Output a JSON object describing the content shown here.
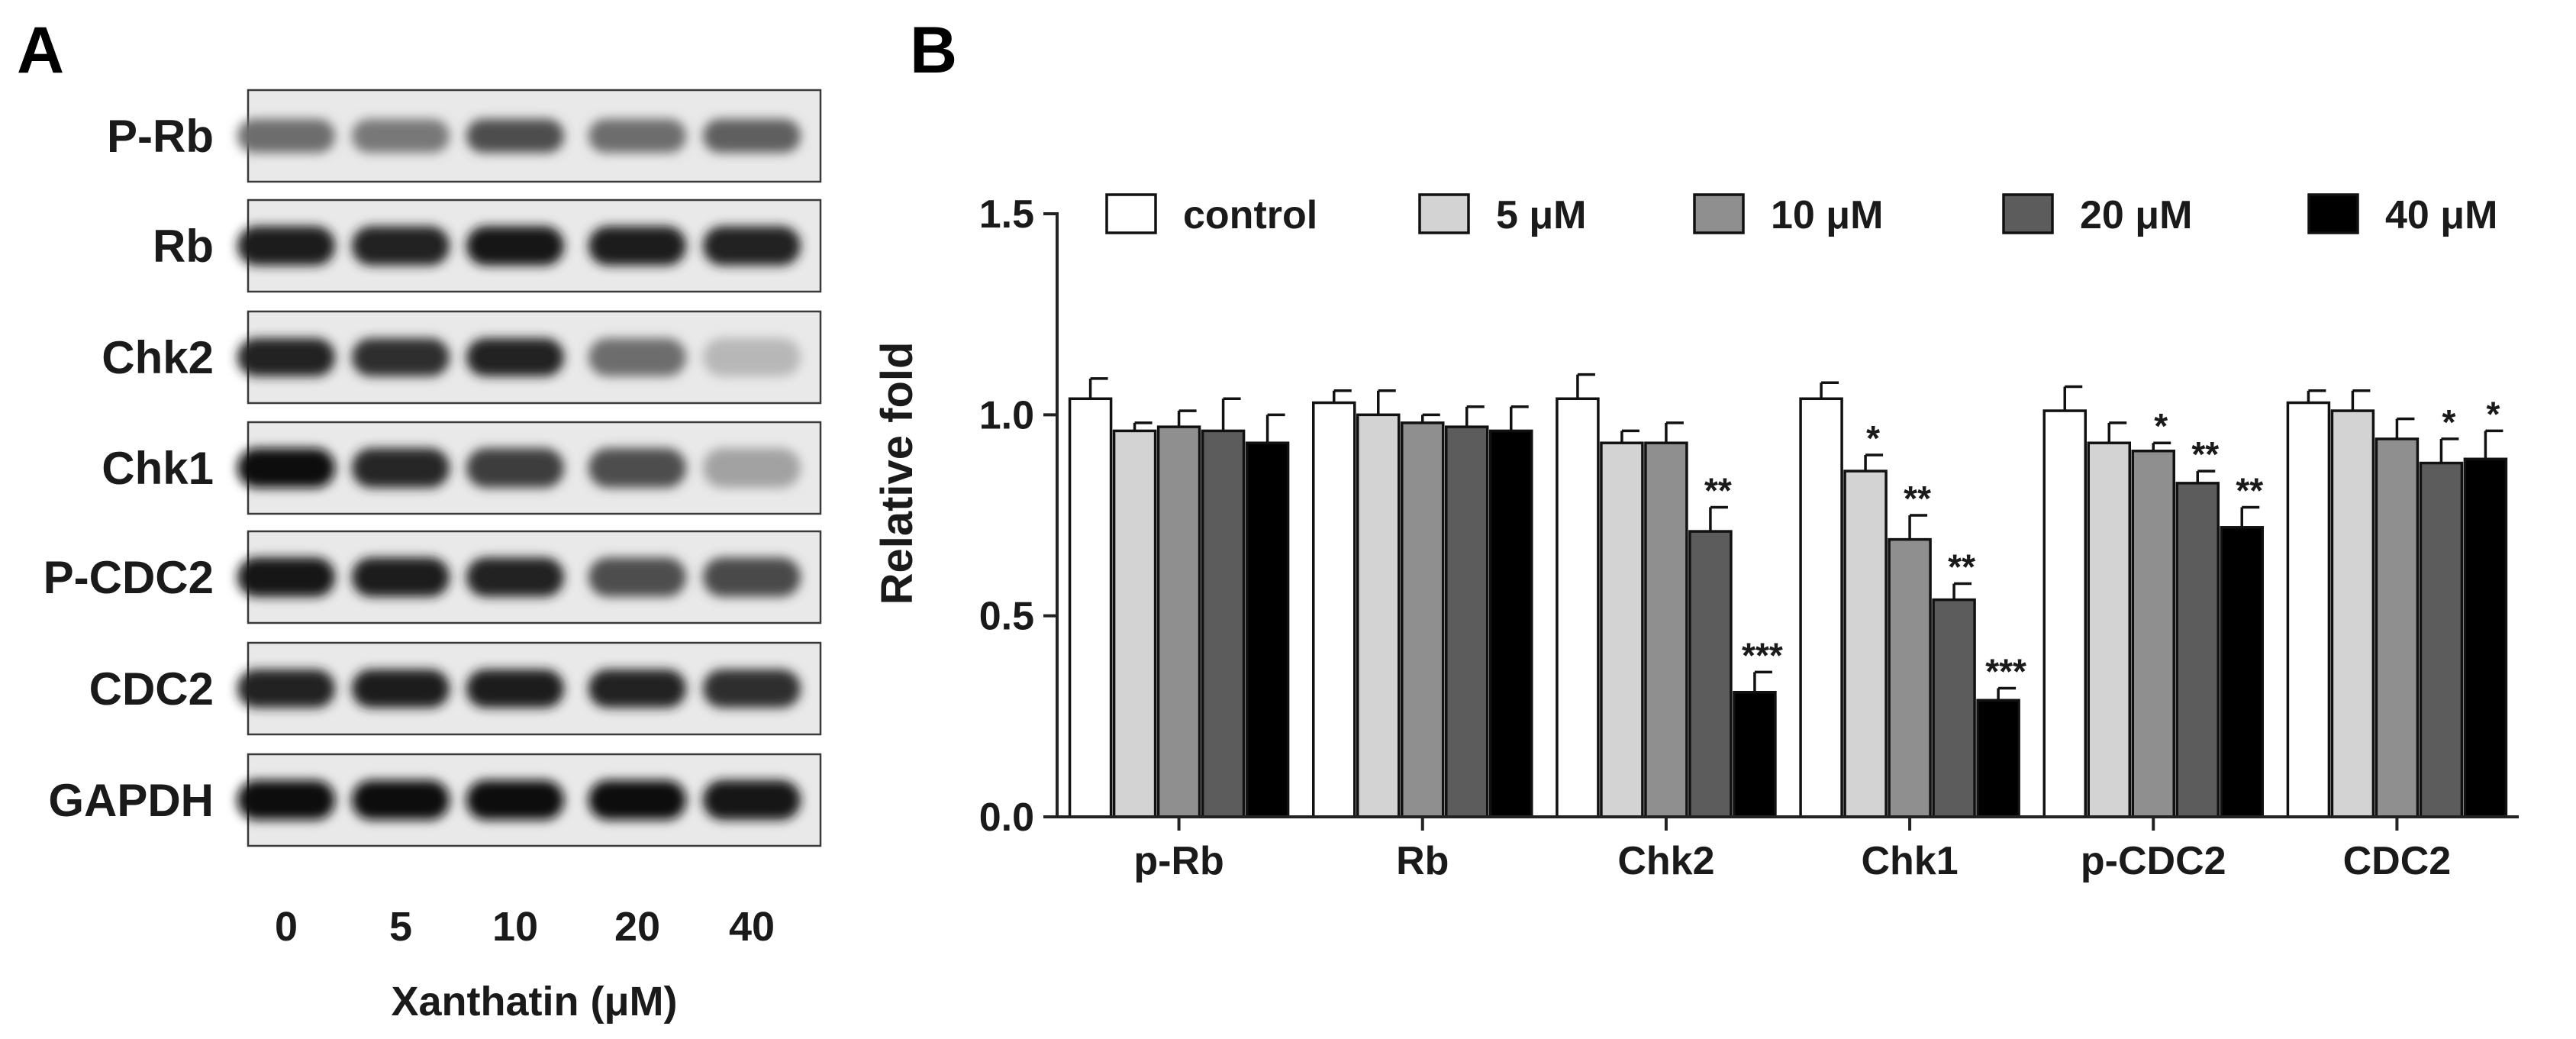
{
  "panel_a": {
    "letter": "A",
    "rows": [
      {
        "label": "P-Rb",
        "intensity": [
          0.55,
          0.5,
          0.7,
          0.55,
          0.62
        ]
      },
      {
        "label": "Rb",
        "intensity": [
          0.95,
          0.92,
          0.98,
          0.93,
          0.9
        ]
      },
      {
        "label": "Chk2",
        "intensity": [
          0.9,
          0.85,
          0.92,
          0.55,
          0.2
        ]
      },
      {
        "label": "Chk1",
        "intensity": [
          1.0,
          0.88,
          0.78,
          0.7,
          0.3
        ]
      },
      {
        "label": "P-CDC2",
        "intensity": [
          0.98,
          0.95,
          0.92,
          0.7,
          0.72
        ]
      },
      {
        "label": "CDC2",
        "intensity": [
          0.92,
          0.93,
          0.93,
          0.92,
          0.85
        ]
      },
      {
        "label": "GAPDH",
        "intensity": [
          1.0,
          1.0,
          1.0,
          1.0,
          0.98
        ]
      }
    ],
    "doses": [
      "0",
      "5",
      "10",
      "20",
      "40"
    ],
    "xlabel": "Xanthatin (μM)"
  },
  "chart_data": {
    "panel_letter": "B",
    "type": "bar",
    "categories": [
      "p-Rb",
      "Rb",
      "Chk2",
      "Chk1",
      "p-CDC2",
      "CDC2"
    ],
    "ylabel": "Relative fold",
    "ylim": [
      0,
      1.5
    ],
    "yticks": [
      "0.0",
      "0.5",
      "1.0",
      "1.5"
    ],
    "legend_position": "top",
    "series": [
      {
        "name": "control",
        "color": "#ffffff",
        "values": [
          1.04,
          1.03,
          1.04,
          1.04,
          1.01,
          1.03
        ],
        "errors": [
          0.05,
          0.03,
          0.06,
          0.04,
          0.06,
          0.03
        ],
        "sig": [
          "",
          "",
          "",
          "",
          "",
          ""
        ]
      },
      {
        "name": "5 μM",
        "color": "#d3d3d3",
        "values": [
          0.96,
          1.0,
          0.93,
          0.86,
          0.93,
          1.01
        ],
        "errors": [
          0.02,
          0.06,
          0.03,
          0.04,
          0.05,
          0.05
        ],
        "sig": [
          "",
          "",
          "",
          "*",
          "",
          ""
        ]
      },
      {
        "name": "10 μM",
        "color": "#8f8f8f",
        "values": [
          0.97,
          0.98,
          0.93,
          0.69,
          0.91,
          0.94
        ],
        "errors": [
          0.04,
          0.02,
          0.05,
          0.06,
          0.02,
          0.05
        ],
        "sig": [
          "",
          "",
          "",
          "**",
          "*",
          ""
        ]
      },
      {
        "name": "20 μM",
        "color": "#5c5c5c",
        "values": [
          0.96,
          0.97,
          0.71,
          0.54,
          0.83,
          0.88
        ],
        "errors": [
          0.08,
          0.05,
          0.06,
          0.04,
          0.03,
          0.06
        ],
        "sig": [
          "",
          "",
          "**",
          "**",
          "**",
          "*"
        ]
      },
      {
        "name": "40 μM",
        "color": "#000000",
        "values": [
          0.93,
          0.96,
          0.31,
          0.29,
          0.72,
          0.89
        ],
        "errors": [
          0.07,
          0.06,
          0.05,
          0.03,
          0.05,
          0.07
        ],
        "sig": [
          "",
          "",
          "***",
          "***",
          "**",
          "*"
        ]
      }
    ]
  }
}
